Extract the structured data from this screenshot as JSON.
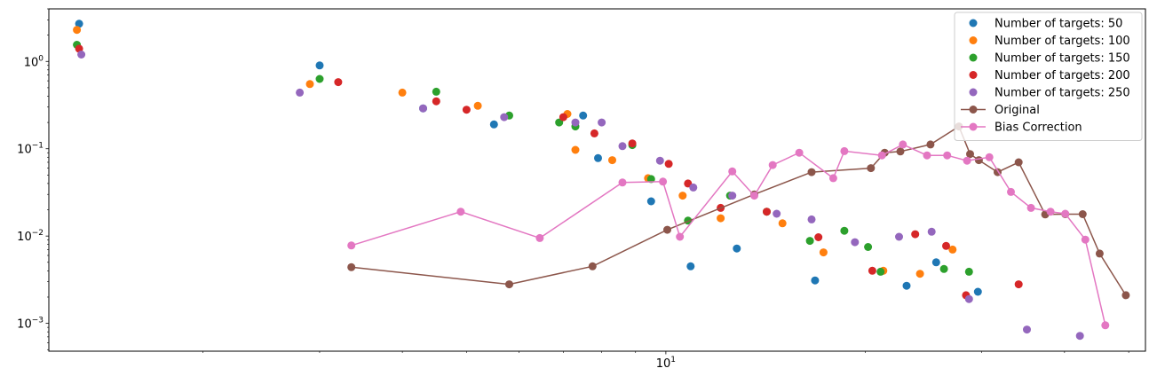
{
  "chart_data": {
    "type": "scatter",
    "xscale": "log",
    "yscale": "log",
    "xlim": [
      1.17,
      53
    ],
    "ylim": [
      0.00048,
      4
    ],
    "x_tick_labels": [
      {
        "value": 10,
        "base": "10",
        "exp": "1"
      }
    ],
    "y_tick_labels": [
      {
        "value": 1,
        "base": "10",
        "exp": "0"
      },
      {
        "value": 0.1,
        "base": "10",
        "exp": "−1"
      },
      {
        "value": 0.01,
        "base": "10",
        "exp": "−2"
      },
      {
        "value": 0.001,
        "base": "10",
        "exp": "−3"
      }
    ],
    "grid": false,
    "legend_position": "top-right",
    "series": [
      {
        "name": "Number of targets: 50",
        "mode": "markers",
        "color": "#1f77b4",
        "points": [
          [
            1.3,
            2.7
          ],
          [
            3.0,
            0.9
          ],
          [
            4.3,
            0.29
          ],
          [
            5.5,
            0.19
          ],
          [
            7.5,
            0.24
          ],
          [
            7.9,
            0.078
          ],
          [
            10.9,
            0.0045
          ],
          [
            9.5,
            0.025
          ],
          [
            12.8,
            0.0072
          ],
          [
            16.8,
            0.0031
          ],
          [
            23.1,
            0.0027
          ],
          [
            25.6,
            0.005
          ],
          [
            29.6,
            0.0023
          ]
        ]
      },
      {
        "name": "Number of targets: 100",
        "mode": "markers",
        "color": "#ff7f0e",
        "points": [
          [
            1.29,
            2.3
          ],
          [
            2.9,
            0.55
          ],
          [
            4.0,
            0.44
          ],
          [
            5.2,
            0.31
          ],
          [
            7.1,
            0.25
          ],
          [
            7.3,
            0.097
          ],
          [
            8.3,
            0.074
          ],
          [
            9.4,
            0.046
          ],
          [
            10.6,
            0.029
          ],
          [
            12.1,
            0.016
          ],
          [
            15.0,
            0.014
          ],
          [
            17.3,
            0.0065
          ],
          [
            21.3,
            0.004
          ],
          [
            24.2,
            0.0037
          ],
          [
            27.1,
            0.007
          ]
        ]
      },
      {
        "name": "Number of targets: 150",
        "mode": "markers",
        "color": "#2ca02c",
        "points": [
          [
            1.29,
            1.55
          ],
          [
            3.0,
            0.63
          ],
          [
            4.5,
            0.45
          ],
          [
            5.8,
            0.24
          ],
          [
            6.9,
            0.2
          ],
          [
            7.3,
            0.18
          ],
          [
            8.9,
            0.11
          ],
          [
            9.5,
            0.045
          ],
          [
            10.8,
            0.015
          ],
          [
            12.5,
            0.029
          ],
          [
            14.2,
            0.019
          ],
          [
            16.5,
            0.0088
          ],
          [
            18.6,
            0.0115
          ],
          [
            20.2,
            0.0075
          ],
          [
            21.1,
            0.0039
          ],
          [
            26.3,
            0.0042
          ],
          [
            28.7,
            0.0039
          ]
        ]
      },
      {
        "name": "Number of targets: 200",
        "mode": "markers",
        "color": "#d62728",
        "points": [
          [
            1.3,
            1.4
          ],
          [
            3.2,
            0.58
          ],
          [
            4.5,
            0.35
          ],
          [
            5.0,
            0.28
          ],
          [
            7.0,
            0.23
          ],
          [
            7.8,
            0.15
          ],
          [
            8.9,
            0.115
          ],
          [
            10.1,
            0.067
          ],
          [
            10.8,
            0.04
          ],
          [
            12.1,
            0.021
          ],
          [
            14.2,
            0.019
          ],
          [
            17.0,
            0.0097
          ],
          [
            20.5,
            0.004
          ],
          [
            23.8,
            0.0105
          ],
          [
            26.5,
            0.0077
          ],
          [
            28.4,
            0.0021
          ],
          [
            34.1,
            0.0028
          ]
        ]
      },
      {
        "name": "Number of targets: 250",
        "mode": "markers",
        "color": "#9467bd",
        "points": [
          [
            1.31,
            1.2
          ],
          [
            2.8,
            0.44
          ],
          [
            4.3,
            0.29
          ],
          [
            5.7,
            0.23
          ],
          [
            7.3,
            0.2
          ],
          [
            8.0,
            0.2
          ],
          [
            8.6,
            0.107
          ],
          [
            9.8,
            0.073
          ],
          [
            11.0,
            0.036
          ],
          [
            12.6,
            0.029
          ],
          [
            14.7,
            0.018
          ],
          [
            16.6,
            0.0155
          ],
          [
            19.3,
            0.0085
          ],
          [
            22.5,
            0.0098
          ],
          [
            25.2,
            0.0112
          ],
          [
            28.7,
            0.0019
          ],
          [
            35.1,
            0.00085
          ],
          [
            42.2,
            0.00072
          ]
        ]
      },
      {
        "name": "Original",
        "mode": "lines+markers",
        "color": "#8c564b",
        "points": [
          [
            3.35,
            0.0044
          ],
          [
            5.8,
            0.0028
          ],
          [
            7.75,
            0.0045
          ],
          [
            10.05,
            0.0118
          ],
          [
            13.6,
            0.03
          ],
          [
            16.6,
            0.054
          ],
          [
            20.4,
            0.06
          ],
          [
            21.4,
            0.09
          ],
          [
            22.6,
            0.093
          ],
          [
            25.1,
            0.112
          ],
          [
            27.7,
            0.18
          ],
          [
            28.8,
            0.087
          ],
          [
            29.7,
            0.074
          ],
          [
            31.7,
            0.054
          ],
          [
            34.1,
            0.07
          ],
          [
            37.4,
            0.0177
          ],
          [
            40.1,
            0.0178
          ],
          [
            42.6,
            0.0178
          ],
          [
            45.2,
            0.0063
          ],
          [
            49.5,
            0.0021
          ]
        ]
      },
      {
        "name": "Bias Correction",
        "mode": "lines+markers",
        "color": "#e377c2",
        "points": [
          [
            3.35,
            0.0078
          ],
          [
            4.9,
            0.019
          ],
          [
            6.45,
            0.0095
          ],
          [
            8.6,
            0.041
          ],
          [
            9.9,
            0.042
          ],
          [
            10.5,
            0.0098
          ],
          [
            12.6,
            0.055
          ],
          [
            13.6,
            0.029
          ],
          [
            14.5,
            0.065
          ],
          [
            15.9,
            0.09
          ],
          [
            17.9,
            0.046
          ],
          [
            18.6,
            0.094
          ],
          [
            21.2,
            0.084
          ],
          [
            22.8,
            0.112
          ],
          [
            24.8,
            0.084
          ],
          [
            26.6,
            0.084
          ],
          [
            28.5,
            0.073
          ],
          [
            30.8,
            0.08
          ],
          [
            33.2,
            0.032
          ],
          [
            35.6,
            0.021
          ],
          [
            38.1,
            0.019
          ],
          [
            40.1,
            0.018
          ],
          [
            43.0,
            0.0091
          ],
          [
            46.1,
            0.00095
          ]
        ]
      }
    ]
  }
}
